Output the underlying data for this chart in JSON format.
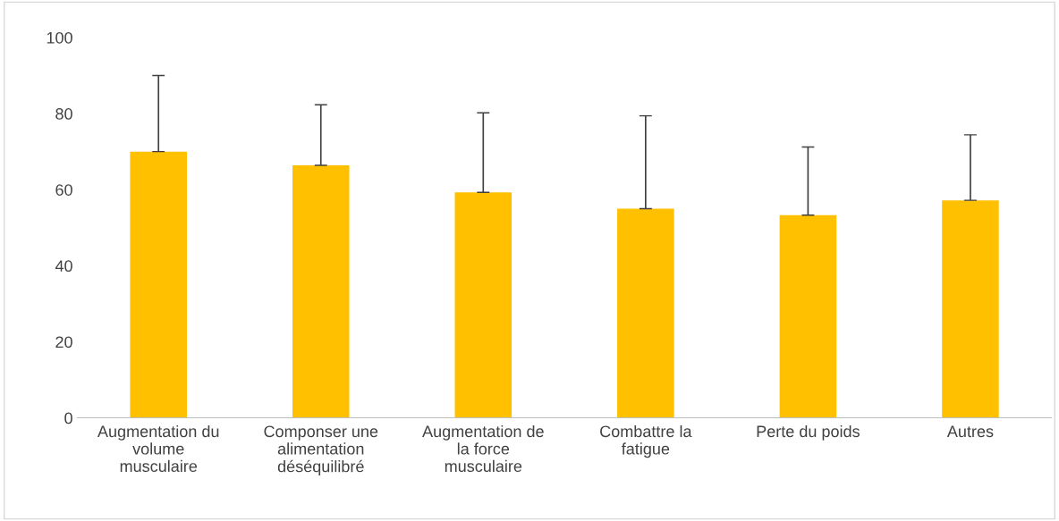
{
  "chart_data": {
    "type": "bar",
    "categories": [
      "Augmentation du\nvolume\nmusculaire",
      "Componser une\nalimentation\ndéséquilibré",
      "Augmentation de\nla force\nmusculaire",
      "Combattre la\nfatigue",
      "Perte du poids",
      "Autres"
    ],
    "values": [
      70,
      66.4,
      59.3,
      55,
      53.3,
      57.2
    ],
    "errors": [
      [
        70,
        90
      ],
      [
        66.4,
        82.3
      ],
      [
        59.3,
        80.2
      ],
      [
        55,
        79.4
      ],
      [
        53.3,
        71.2
      ],
      [
        57.2,
        74.4
      ]
    ],
    "color": "#ffc000",
    "ylim": [
      0,
      100
    ],
    "yticks": [
      0,
      20,
      40,
      60,
      80,
      100
    ],
    "grid": false
  }
}
